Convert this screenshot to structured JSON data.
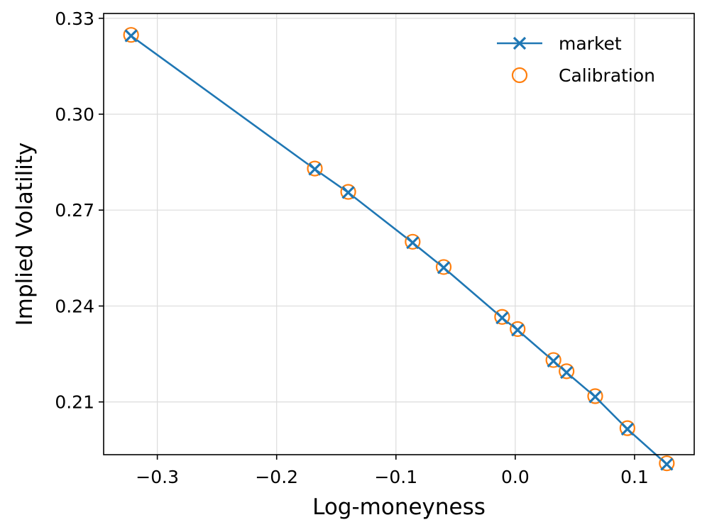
{
  "chart_data": {
    "type": "line",
    "title": "",
    "xlabel": "Log-moneyness",
    "ylabel": "Implied Volatility",
    "xlim": [
      -0.345,
      0.15
    ],
    "ylim": [
      0.1935,
      0.3315
    ],
    "xticks": [
      -0.3,
      -0.2,
      -0.1,
      0.0,
      0.1
    ],
    "xtick_labels": [
      "−0.3",
      "−0.2",
      "−0.1",
      "0.0",
      "0.1"
    ],
    "yticks": [
      0.21,
      0.24,
      0.27,
      0.3,
      0.33
    ],
    "ytick_labels": [
      "0.21",
      "0.24",
      "0.27",
      "0.30",
      "0.33"
    ],
    "grid": true,
    "legend_position": "top-right",
    "series": [
      {
        "name": "market",
        "style": "line-x-markers",
        "color": "#1f77b4",
        "x": [
          -0.322,
          -0.168,
          -0.14,
          -0.086,
          -0.06,
          -0.011,
          0.002,
          0.032,
          0.043,
          0.067,
          0.094,
          0.127
        ],
        "y": [
          0.3245,
          0.2828,
          0.2755,
          0.2598,
          0.252,
          0.2363,
          0.2325,
          0.2228,
          0.2192,
          0.2116,
          0.2015,
          0.1905
        ]
      },
      {
        "name": "Calibration",
        "style": "hollow-circles",
        "color": "#ff7f0e",
        "x": [
          -0.322,
          -0.168,
          -0.14,
          -0.086,
          -0.06,
          -0.011,
          0.002,
          0.032,
          0.043,
          0.067,
          0.094,
          0.127
        ],
        "y": [
          0.3248,
          0.283,
          0.2757,
          0.2601,
          0.2522,
          0.2366,
          0.2328,
          0.2231,
          0.2196,
          0.2118,
          0.2018,
          0.1908
        ]
      }
    ]
  }
}
